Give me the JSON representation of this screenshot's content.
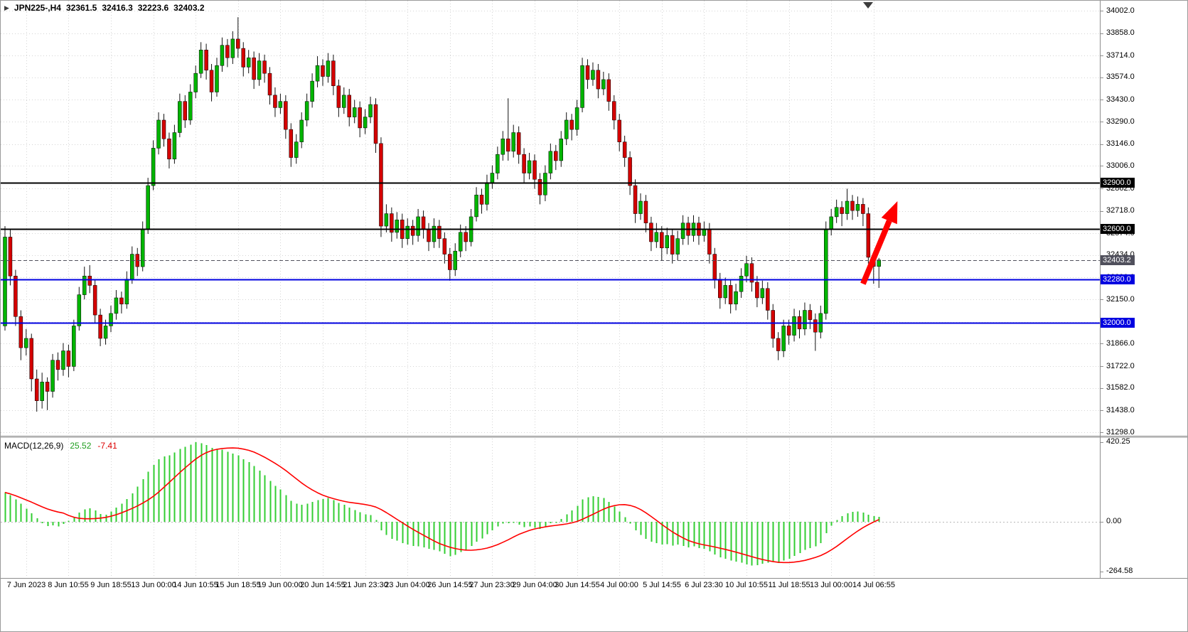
{
  "symbol_bar": {
    "symbol_period": "JPN225-,H4",
    "open": "32361.5",
    "high": "32416.3",
    "low": "32223.6",
    "close": "32403.2"
  },
  "indicator": {
    "name": "MACD(12,26,9)",
    "value_main": "25.52",
    "value_signal": "-7.41",
    "axis": {
      "max": "420.25",
      "zero": "0.00",
      "min": "-264.58"
    }
  },
  "levels": [
    {
      "price": 32900.0,
      "label": "32900.0",
      "color": "#000000",
      "width": 2,
      "style": "solid",
      "kind": "resistance"
    },
    {
      "price": 32600.0,
      "label": "32600.0",
      "color": "#000000",
      "width": 2,
      "style": "solid",
      "kind": "resistance"
    },
    {
      "price": 32403.2,
      "label": "32403.2",
      "color": "#50505c",
      "width": 1,
      "style": "dashed",
      "kind": "current-price"
    },
    {
      "price": 32280.0,
      "label": "32280.0",
      "color": "#0000e0",
      "width": 2,
      "style": "solid",
      "kind": "support"
    },
    {
      "price": 32000.0,
      "label": "32000.0",
      "color": "#0000e0",
      "width": 2,
      "style": "solid",
      "kind": "support"
    }
  ],
  "annotations": [
    {
      "type": "arrow",
      "color": "#ff0000",
      "from": {
        "index": 162,
        "price": 32250
      },
      "to": {
        "index": 168.5,
        "price": 32780
      }
    }
  ],
  "colors": {
    "background": "#ffffff",
    "grid": "#d4d4d4",
    "separator": "#8c8c8c",
    "axis_text": "#000000"
  },
  "chart_data": [
    {
      "type": "candlestick",
      "title": "JPN225-,H4",
      "timeframe": "H4",
      "colors": {
        "bull": "#00b400",
        "bear": "#d40000",
        "wick": "#111111"
      },
      "y_ticks": [
        "34002.0",
        "33858.0",
        "33714.0",
        "33574.0",
        "33430.0",
        "33290.0",
        "33146.0",
        "33006.0",
        "32862.0",
        "32718.0",
        "32574.0",
        "32434.0",
        "32290.0",
        "32150.0",
        "32006.0",
        "31866.0",
        "31722.0",
        "31582.0",
        "31438.0",
        "31298.0"
      ],
      "ylim": [
        31298.0,
        34002.0
      ],
      "x_labels": [
        "7 Jun 2023",
        "8 Jun 10:55",
        "9 Jun 18:55",
        "13 Jun 00:00",
        "14 Jun 10:55",
        "15 Jun 18:55",
        "19 Jun 00:00",
        "20 Jun 14:55",
        "21 Jun 23:30",
        "23 Jun 04:00",
        "26 Jun 14:55",
        "27 Jun 23:30",
        "29 Jun 04:00",
        "30 Jun 14:55",
        "4 Jul 00:00",
        "5 Jul 14:55",
        "6 Jul 23:30",
        "10 Jul 10:55",
        "11 Jul 18:55",
        "13 Jul 00:00",
        "14 Jul 06:55"
      ],
      "label_start_index": 4,
      "label_step": 8,
      "ohlc": [
        [
          31980,
          32620,
          31950,
          32550
        ],
        [
          32550,
          32600,
          32240,
          32300
        ],
        [
          32300,
          32340,
          31980,
          32040
        ],
        [
          32040,
          32080,
          31760,
          31840
        ],
        [
          31840,
          31960,
          31790,
          31900
        ],
        [
          31900,
          31930,
          31560,
          31640
        ],
        [
          31640,
          31700,
          31430,
          31500
        ],
        [
          31500,
          31680,
          31450,
          31620
        ],
        [
          31620,
          31650,
          31440,
          31560
        ],
        [
          31560,
          31800,
          31520,
          31760
        ],
        [
          31760,
          31810,
          31630,
          31700
        ],
        [
          31700,
          31870,
          31660,
          31820
        ],
        [
          31820,
          31860,
          31650,
          31720
        ],
        [
          31720,
          32020,
          31690,
          31980
        ],
        [
          31980,
          32230,
          31950,
          32180
        ],
        [
          32180,
          32360,
          32150,
          32300
        ],
        [
          32300,
          32370,
          32190,
          32240
        ],
        [
          32240,
          32280,
          32000,
          32050
        ],
        [
          32050,
          32090,
          31850,
          31900
        ],
        [
          31900,
          32020,
          31860,
          31980
        ],
        [
          31980,
          32110,
          31940,
          32060
        ],
        [
          32060,
          32210,
          32020,
          32160
        ],
        [
          32160,
          32200,
          32060,
          32120
        ],
        [
          32120,
          32330,
          32090,
          32280
        ],
        [
          32280,
          32490,
          32250,
          32440
        ],
        [
          32440,
          32480,
          32300,
          32360
        ],
        [
          32360,
          32650,
          32330,
          32600
        ],
        [
          32600,
          32930,
          32570,
          32880
        ],
        [
          32880,
          33170,
          32850,
          33120
        ],
        [
          33120,
          33350,
          33080,
          33300
        ],
        [
          33300,
          33340,
          33130,
          33180
        ],
        [
          33180,
          33220,
          32990,
          33050
        ],
        [
          33050,
          33270,
          33020,
          33220
        ],
        [
          33220,
          33470,
          33190,
          33420
        ],
        [
          33420,
          33460,
          33250,
          33300
        ],
        [
          33300,
          33530,
          33270,
          33480
        ],
        [
          33480,
          33650,
          33440,
          33600
        ],
        [
          33600,
          33800,
          33570,
          33750
        ],
        [
          33750,
          33790,
          33560,
          33620
        ],
        [
          33620,
          33660,
          33420,
          33480
        ],
        [
          33480,
          33700,
          33450,
          33650
        ],
        [
          33650,
          33830,
          33610,
          33780
        ],
        [
          33780,
          33820,
          33640,
          33700
        ],
        [
          33700,
          33870,
          33660,
          33820
        ],
        [
          33820,
          33960,
          33700,
          33760
        ],
        [
          33760,
          33800,
          33580,
          33640
        ],
        [
          33640,
          33750,
          33600,
          33700
        ],
        [
          33700,
          33740,
          33500,
          33560
        ],
        [
          33560,
          33730,
          33520,
          33680
        ],
        [
          33680,
          33720,
          33540,
          33600
        ],
        [
          33600,
          33640,
          33400,
          33460
        ],
        [
          33460,
          33510,
          33320,
          33380
        ],
        [
          33380,
          33470,
          33340,
          33420
        ],
        [
          33420,
          33460,
          33180,
          33240
        ],
        [
          33240,
          33280,
          33000,
          33060
        ],
        [
          33060,
          33210,
          33020,
          33160
        ],
        [
          33160,
          33350,
          33120,
          33300
        ],
        [
          33300,
          33470,
          33260,
          33420
        ],
        [
          33420,
          33600,
          33380,
          33550
        ],
        [
          33550,
          33710,
          33510,
          33650
        ],
        [
          33650,
          33690,
          33520,
          33580
        ],
        [
          33580,
          33730,
          33540,
          33680
        ],
        [
          33680,
          33720,
          33460,
          33520
        ],
        [
          33520,
          33560,
          33320,
          33380
        ],
        [
          33380,
          33510,
          33340,
          33460
        ],
        [
          33460,
          33500,
          33260,
          33320
        ],
        [
          33320,
          33430,
          33280,
          33380
        ],
        [
          33380,
          33420,
          33190,
          33250
        ],
        [
          33250,
          33370,
          33210,
          33320
        ],
        [
          33320,
          33450,
          33280,
          33400
        ],
        [
          33400,
          33440,
          33090,
          33150
        ],
        [
          33150,
          33190,
          32550,
          32620
        ],
        [
          32620,
          32760,
          32580,
          32700
        ],
        [
          32700,
          32740,
          32520,
          32580
        ],
        [
          32580,
          32710,
          32540,
          32660
        ],
        [
          32660,
          32700,
          32480,
          32540
        ],
        [
          32540,
          32670,
          32500,
          32620
        ],
        [
          32620,
          32660,
          32500,
          32560
        ],
        [
          32560,
          32730,
          32520,
          32680
        ],
        [
          32680,
          32720,
          32540,
          32600
        ],
        [
          32600,
          32640,
          32460,
          32520
        ],
        [
          32520,
          32670,
          32480,
          32620
        ],
        [
          32620,
          32660,
          32480,
          32540
        ],
        [
          32540,
          32580,
          32380,
          32440
        ],
        [
          32440,
          32480,
          32270,
          32340
        ],
        [
          32340,
          32510,
          32300,
          32460
        ],
        [
          32460,
          32630,
          32420,
          32580
        ],
        [
          32580,
          32620,
          32460,
          32520
        ],
        [
          32520,
          32730,
          32490,
          32680
        ],
        [
          32680,
          32870,
          32650,
          32820
        ],
        [
          32820,
          32860,
          32700,
          32760
        ],
        [
          32760,
          32950,
          32720,
          32900
        ],
        [
          32900,
          33010,
          32860,
          32960
        ],
        [
          32960,
          33130,
          32920,
          33080
        ],
        [
          33080,
          33230,
          33040,
          33180
        ],
        [
          33180,
          33440,
          33040,
          33100
        ],
        [
          33100,
          33270,
          33060,
          33220
        ],
        [
          33220,
          33260,
          33020,
          33080
        ],
        [
          33080,
          33120,
          32900,
          32960
        ],
        [
          32960,
          33090,
          32920,
          33040
        ],
        [
          33040,
          33080,
          32860,
          32920
        ],
        [
          32920,
          32960,
          32760,
          32820
        ],
        [
          32820,
          33010,
          32780,
          32960
        ],
        [
          32960,
          33150,
          32920,
          33100
        ],
        [
          33100,
          33140,
          32980,
          33040
        ],
        [
          33040,
          33230,
          33000,
          33180
        ],
        [
          33180,
          33350,
          33140,
          33300
        ],
        [
          33300,
          33340,
          33170,
          33240
        ],
        [
          33240,
          33430,
          33200,
          33380
        ],
        [
          33380,
          33700,
          33350,
          33650
        ],
        [
          33650,
          33690,
          33500,
          33560
        ],
        [
          33560,
          33670,
          33520,
          33620
        ],
        [
          33620,
          33660,
          33440,
          33500
        ],
        [
          33500,
          33610,
          33460,
          33560
        ],
        [
          33560,
          33600,
          33360,
          33420
        ],
        [
          33420,
          33460,
          33240,
          33300
        ],
        [
          33300,
          33340,
          33100,
          33160
        ],
        [
          33160,
          33200,
          33000,
          33060
        ],
        [
          33060,
          33100,
          32820,
          32880
        ],
        [
          32880,
          32920,
          32640,
          32700
        ],
        [
          32700,
          32830,
          32660,
          32780
        ],
        [
          32780,
          32820,
          32580,
          32640
        ],
        [
          32640,
          32680,
          32460,
          32520
        ],
        [
          32520,
          32640,
          32480,
          32580
        ],
        [
          32580,
          32620,
          32400,
          32480
        ],
        [
          32480,
          32610,
          32440,
          32560
        ],
        [
          32560,
          32600,
          32380,
          32440
        ],
        [
          32440,
          32590,
          32400,
          32540
        ],
        [
          32540,
          32690,
          32500,
          32640
        ],
        [
          32640,
          32680,
          32500,
          32560
        ],
        [
          32560,
          32690,
          32520,
          32640
        ],
        [
          32640,
          32680,
          32500,
          32560
        ],
        [
          32560,
          32650,
          32520,
          32600
        ],
        [
          32600,
          32640,
          32380,
          32440
        ],
        [
          32440,
          32480,
          32220,
          32280
        ],
        [
          32280,
          32320,
          32090,
          32160
        ],
        [
          32160,
          32290,
          32120,
          32240
        ],
        [
          32240,
          32280,
          32060,
          32120
        ],
        [
          32120,
          32250,
          32080,
          32200
        ],
        [
          32200,
          32350,
          32160,
          32300
        ],
        [
          32300,
          32430,
          32260,
          32380
        ],
        [
          32380,
          32420,
          32200,
          32260
        ],
        [
          32260,
          32300,
          32100,
          32160
        ],
        [
          32160,
          32270,
          32120,
          32220
        ],
        [
          32220,
          32260,
          32020,
          32080
        ],
        [
          32080,
          32120,
          31840,
          31900
        ],
        [
          31900,
          31940,
          31760,
          31820
        ],
        [
          31820,
          32020,
          31780,
          31980
        ],
        [
          31980,
          32020,
          31860,
          31920
        ],
        [
          31920,
          32090,
          31880,
          32040
        ],
        [
          32040,
          32080,
          31900,
          31960
        ],
        [
          31960,
          32130,
          31920,
          32080
        ],
        [
          32080,
          32120,
          31960,
          32020
        ],
        [
          32020,
          32060,
          31820,
          31940
        ],
        [
          31940,
          32110,
          31900,
          32060
        ],
        [
          32060,
          32650,
          32020,
          32600
        ],
        [
          32600,
          32730,
          32560,
          32680
        ],
        [
          32680,
          32790,
          32640,
          32740
        ],
        [
          32740,
          32780,
          32620,
          32700
        ],
        [
          32700,
          32860,
          32660,
          32780
        ],
        [
          32780,
          32820,
          32660,
          32720
        ],
        [
          32720,
          32810,
          32680,
          32760
        ],
        [
          32760,
          32800,
          32620,
          32700
        ],
        [
          32700,
          32740,
          32380,
          32420
        ],
        [
          32420,
          32450,
          32250,
          32361.5
        ],
        [
          32361.5,
          32416.3,
          32223.6,
          32403.2
        ]
      ]
    },
    {
      "type": "bar",
      "name": "MACD histogram with signal line",
      "colors": {
        "histogram": "#32cd32",
        "signal": "#ff0000"
      },
      "ylim": [
        -264.58,
        420.25
      ],
      "values": [
        155,
        140,
        118,
        95,
        70,
        45,
        18,
        -8,
        -22,
        -18,
        -25,
        -12,
        5,
        25,
        48,
        66,
        72,
        60,
        42,
        38,
        55,
        75,
        95,
        120,
        150,
        185,
        225,
        265,
        300,
        330,
        345,
        350,
        365,
        385,
        395,
        408,
        420,
        415,
        405,
        390,
        385,
        380,
        370,
        360,
        350,
        330,
        315,
        295,
        270,
        245,
        215,
        190,
        170,
        140,
        110,
        95,
        90,
        95,
        105,
        115,
        120,
        125,
        115,
        100,
        90,
        75,
        62,
        50,
        40,
        35,
        10,
        -45,
        -70,
        -90,
        -100,
        -112,
        -120,
        -128,
        -130,
        -135,
        -142,
        -148,
        -155,
        -168,
        -182,
        -175,
        -160,
        -148,
        -128,
        -105,
        -88,
        -65,
        -45,
        -25,
        -10,
        -8,
        -5,
        -15,
        -28,
        -25,
        -32,
        -38,
        -25,
        -8,
        -5,
        15,
        40,
        60,
        85,
        118,
        130,
        135,
        132,
        125,
        105,
        80,
        55,
        25,
        -10,
        -45,
        -70,
        -90,
        -105,
        -112,
        -120,
        -118,
        -125,
        -120,
        -128,
        -135,
        -130,
        -138,
        -142,
        -155,
        -172,
        -188,
        -195,
        -205,
        -210,
        -215,
        -225,
        -230,
        -228,
        -222,
        -215,
        -212,
        -218,
        -205,
        -195,
        -180,
        -165,
        -148,
        -138,
        -130,
        -112,
        -60,
        -20,
        10,
        30,
        45,
        52,
        55,
        48,
        38,
        30,
        25.52
      ]
    }
  ]
}
